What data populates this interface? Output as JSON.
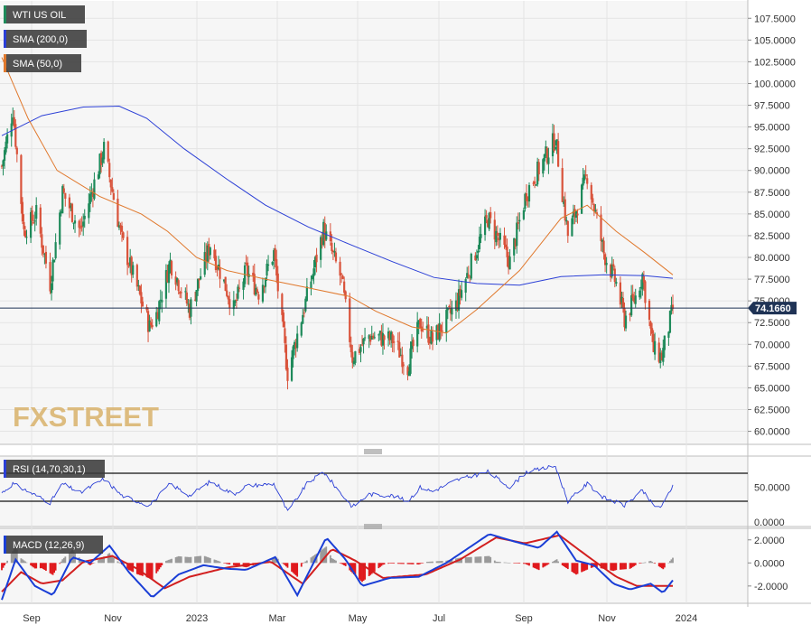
{
  "colors": {
    "background": "#f6f6f6",
    "grid": "#e4e4e4",
    "candle_up": "#1e8a5a",
    "candle_down": "#d9533b",
    "sma200": "#2b3fd6",
    "sma50": "#e0782c",
    "price_tag": "#1f3355",
    "rsi_line": "#2b3fd6",
    "macd_line": "#1a3ed6",
    "signal_line": "#d21f1f",
    "hist_pos": "#9a9a9a",
    "hist_neg": "#e0191d",
    "watermark": "#d8b26a"
  },
  "watermark": {
    "fx": "FX",
    "street": "STREET"
  },
  "legend": {
    "main": [
      {
        "label": "WTI US OIL",
        "swatch": "#1e8a5a"
      },
      {
        "label": "SMA (200,0)",
        "swatch": "#2b3fd6"
      },
      {
        "label": "SMA (50,0)",
        "swatch": "#e0782c"
      }
    ],
    "rsi": {
      "label": "RSI (14,70,30,1)",
      "swatch": "#2b3fd6"
    },
    "macd": {
      "label": "MACD (12,26,9)",
      "swatch": "#1a3ed6"
    }
  },
  "chart_data": [
    {
      "type": "candlestick",
      "title": "WTI US OIL",
      "ylim": [
        58.5,
        109.5
      ],
      "yticks": [
        "60.0000",
        "62.5000",
        "65.0000",
        "67.5000",
        "70.0000",
        "72.5000",
        "75.0000",
        "77.5000",
        "80.0000",
        "82.5000",
        "85.0000",
        "87.5000",
        "90.0000",
        "92.5000",
        "95.0000",
        "97.5000",
        "100.0000",
        "102.5000",
        "105.0000",
        "107.5000"
      ],
      "current_price": "74.1660",
      "x_labels": [
        "Sep",
        "Nov",
        "2023",
        "Mar",
        "May",
        "Jul",
        "Sep",
        "Nov",
        "2024"
      ],
      "price_path": [
        [
          "2022-08-22",
          90.5
        ],
        [
          "2022-08-30",
          97.0
        ],
        [
          "2022-09-07",
          83.0
        ],
        [
          "2022-09-16",
          85.0
        ],
        [
          "2022-09-26",
          77.0
        ],
        [
          "2022-10-05",
          87.5
        ],
        [
          "2022-10-18",
          83.0
        ],
        [
          "2022-11-04",
          92.5
        ],
        [
          "2022-11-17",
          82.0
        ],
        [
          "2022-12-07",
          72.0
        ],
        [
          "2022-12-12",
          73.5
        ],
        [
          "2022-12-22",
          79.5
        ],
        [
          "2023-01-05",
          74.0
        ],
        [
          "2023-01-20",
          81.5
        ],
        [
          "2023-02-06",
          74.0
        ],
        [
          "2023-02-15",
          78.5
        ],
        [
          "2023-02-24",
          76.0
        ],
        [
          "2023-03-07",
          80.5
        ],
        [
          "2023-03-17",
          66.7
        ],
        [
          "2023-03-31",
          75.5
        ],
        [
          "2023-04-12",
          83.2
        ],
        [
          "2023-04-25",
          77.5
        ],
        [
          "2023-05-03",
          68.5
        ],
        [
          "2023-05-15",
          71.0
        ],
        [
          "2023-06-01",
          70.5
        ],
        [
          "2023-06-12",
          67.5
        ],
        [
          "2023-06-21",
          72.5
        ],
        [
          "2023-06-30",
          70.5
        ],
        [
          "2023-07-17",
          74.5
        ],
        [
          "2023-08-09",
          84.5
        ],
        [
          "2023-08-25",
          79.5
        ],
        [
          "2023-09-06",
          87.5
        ],
        [
          "2023-09-27",
          93.7
        ],
        [
          "2023-10-06",
          82.5
        ],
        [
          "2023-10-20",
          89.5
        ],
        [
          "2023-11-01",
          80.5
        ],
        [
          "2023-11-10",
          77.0
        ],
        [
          "2023-11-16",
          72.9
        ],
        [
          "2023-11-24",
          75.5
        ],
        [
          "2023-11-29",
          78.0
        ],
        [
          "2023-12-07",
          69.3
        ],
        [
          "2023-12-13",
          68.6
        ],
        [
          "2023-12-21",
          74.1
        ]
      ],
      "sma200_path": [
        [
          "2022-08-22",
          94.0
        ],
        [
          "2022-09-20",
          96.3
        ],
        [
          "2022-10-20",
          97.3
        ],
        [
          "2022-11-15",
          97.4
        ],
        [
          "2022-12-05",
          96.0
        ],
        [
          "2023-01-01",
          92.5
        ],
        [
          "2023-02-01",
          89.0
        ],
        [
          "2023-03-01",
          86.0
        ],
        [
          "2023-04-01",
          83.5
        ],
        [
          "2023-05-01",
          81.5
        ],
        [
          "2023-06-01",
          79.5
        ],
        [
          "2023-07-01",
          77.7
        ],
        [
          "2023-08-01",
          77.0
        ],
        [
          "2023-09-01",
          76.8
        ],
        [
          "2023-10-01",
          77.8
        ],
        [
          "2023-11-01",
          78.0
        ],
        [
          "2023-12-01",
          77.9
        ],
        [
          "2023-12-21",
          77.6
        ]
      ],
      "sma50_path": [
        [
          "2022-08-22",
          103.0
        ],
        [
          "2022-09-10",
          96.0
        ],
        [
          "2022-10-01",
          90.0
        ],
        [
          "2022-11-01",
          87.0
        ],
        [
          "2022-12-01",
          85.0
        ],
        [
          "2022-12-20",
          83.0
        ],
        [
          "2023-01-10",
          80.0
        ],
        [
          "2023-02-01",
          78.5
        ],
        [
          "2023-03-01",
          77.5
        ],
        [
          "2023-04-01",
          76.5
        ],
        [
          "2023-05-01",
          75.5
        ],
        [
          "2023-05-20",
          73.8
        ],
        [
          "2023-06-15",
          72.0
        ],
        [
          "2023-07-10",
          71.3
        ],
        [
          "2023-08-01",
          74.0
        ],
        [
          "2023-09-01",
          78.5
        ],
        [
          "2023-10-01",
          84.5
        ],
        [
          "2023-10-20",
          86.0
        ],
        [
          "2023-11-10",
          83.0
        ],
        [
          "2023-12-01",
          80.5
        ],
        [
          "2023-12-21",
          78.0
        ]
      ]
    },
    {
      "type": "line",
      "title": "RSI (14,70,30,1)",
      "ylim": [
        0,
        100
      ],
      "levels": [
        70,
        30
      ],
      "ytick_labels": [
        "50.0000",
        "0.0000"
      ],
      "rsi_path": [
        [
          "2022-08-22",
          42
        ],
        [
          "2022-08-30",
          55
        ],
        [
          "2022-09-16",
          38
        ],
        [
          "2022-09-26",
          28
        ],
        [
          "2022-10-05",
          55
        ],
        [
          "2022-10-18",
          42
        ],
        [
          "2022-11-04",
          62
        ],
        [
          "2022-11-17",
          38
        ],
        [
          "2022-12-07",
          24
        ],
        [
          "2022-12-22",
          55
        ],
        [
          "2023-01-05",
          38
        ],
        [
          "2023-01-20",
          58
        ],
        [
          "2023-02-06",
          40
        ],
        [
          "2023-02-15",
          52
        ],
        [
          "2023-03-07",
          55
        ],
        [
          "2023-03-17",
          15
        ],
        [
          "2023-03-31",
          55
        ],
        [
          "2023-04-12",
          72
        ],
        [
          "2023-04-25",
          40
        ],
        [
          "2023-05-03",
          22
        ],
        [
          "2023-05-15",
          40
        ],
        [
          "2023-06-01",
          38
        ],
        [
          "2023-06-12",
          30
        ],
        [
          "2023-06-21",
          50
        ],
        [
          "2023-06-30",
          44
        ],
        [
          "2023-07-17",
          60
        ],
        [
          "2023-08-09",
          72
        ],
        [
          "2023-08-25",
          50
        ],
        [
          "2023-09-06",
          72
        ],
        [
          "2023-09-27",
          80
        ],
        [
          "2023-10-06",
          30
        ],
        [
          "2023-10-20",
          55
        ],
        [
          "2023-11-01",
          35
        ],
        [
          "2023-11-16",
          24
        ],
        [
          "2023-11-29",
          45
        ],
        [
          "2023-12-07",
          24
        ],
        [
          "2023-12-13",
          22
        ],
        [
          "2023-12-21",
          53
        ]
      ]
    },
    {
      "type": "macd",
      "title": "MACD (12,26,9)",
      "ylim": [
        -3.5,
        3.0
      ],
      "ytick_labels": [
        "2.0000",
        "0.0000",
        "-2.0000"
      ],
      "macd_path": [
        [
          "2022-08-22",
          -3.2
        ],
        [
          "2022-09-01",
          0.3
        ],
        [
          "2022-09-15",
          -2.0
        ],
        [
          "2022-09-28",
          -2.8
        ],
        [
          "2022-10-12",
          0.5
        ],
        [
          "2022-10-25",
          0.0
        ],
        [
          "2022-11-08",
          1.5
        ],
        [
          "2022-11-22",
          -0.8
        ],
        [
          "2022-12-09",
          -3.0
        ],
        [
          "2022-12-28",
          -1.0
        ],
        [
          "2023-01-15",
          -0.2
        ],
        [
          "2023-02-01",
          -0.5
        ],
        [
          "2023-02-15",
          -0.6
        ],
        [
          "2023-03-08",
          0.5
        ],
        [
          "2023-03-24",
          -2.8
        ],
        [
          "2023-04-14",
          2.2
        ],
        [
          "2023-04-28",
          0.3
        ],
        [
          "2023-05-10",
          -2.0
        ],
        [
          "2023-05-30",
          -1.3
        ],
        [
          "2023-06-20",
          -1.2
        ],
        [
          "2023-07-10",
          0.0
        ],
        [
          "2023-08-10",
          2.5
        ],
        [
          "2023-08-30",
          1.8
        ],
        [
          "2023-09-15",
          1.3
        ],
        [
          "2023-09-28",
          2.7
        ],
        [
          "2023-10-12",
          0.2
        ],
        [
          "2023-10-25",
          -0.2
        ],
        [
          "2023-11-08",
          -1.8
        ],
        [
          "2023-11-20",
          -2.3
        ],
        [
          "2023-12-05",
          -1.8
        ],
        [
          "2023-12-14",
          -2.6
        ],
        [
          "2023-12-21",
          -1.5
        ]
      ],
      "signal_path": [
        [
          "2022-08-22",
          -2.5
        ],
        [
          "2022-09-05",
          -0.8
        ],
        [
          "2022-09-20",
          -1.8
        ],
        [
          "2022-10-05",
          -1.5
        ],
        [
          "2022-10-20",
          0.1
        ],
        [
          "2022-11-10",
          0.6
        ],
        [
          "2022-11-28",
          -0.5
        ],
        [
          "2022-12-18",
          -2.2
        ],
        [
          "2023-01-05",
          -1.2
        ],
        [
          "2023-02-01",
          -0.4
        ],
        [
          "2023-03-05",
          0.1
        ],
        [
          "2023-03-28",
          -1.8
        ],
        [
          "2023-04-18",
          1.2
        ],
        [
          "2023-05-05",
          0.2
        ],
        [
          "2023-05-25",
          -1.3
        ],
        [
          "2023-06-25",
          -1.0
        ],
        [
          "2023-07-20",
          0.3
        ],
        [
          "2023-08-15",
          2.2
        ],
        [
          "2023-09-05",
          1.7
        ],
        [
          "2023-09-30",
          2.4
        ],
        [
          "2023-10-20",
          0.6
        ],
        [
          "2023-11-10",
          -1.2
        ],
        [
          "2023-11-25",
          -2.0
        ],
        [
          "2023-12-10",
          -2.0
        ],
        [
          "2023-12-21",
          -2.0
        ]
      ]
    }
  ]
}
